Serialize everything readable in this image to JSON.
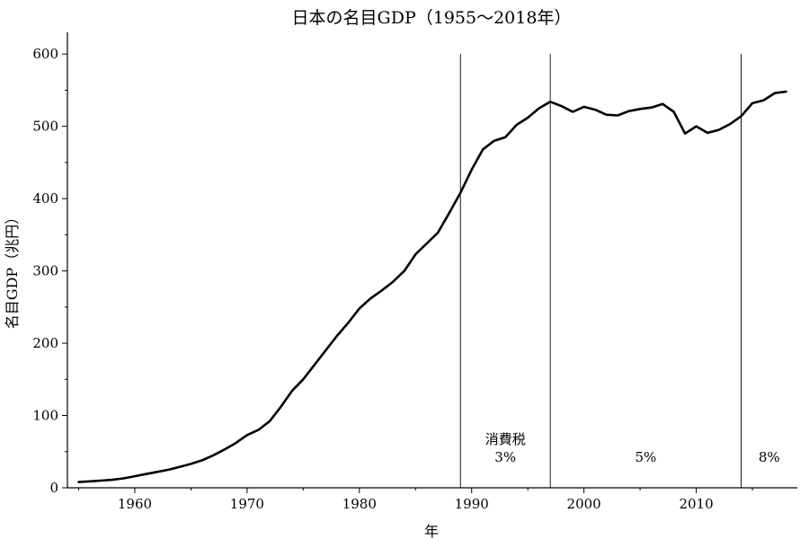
{
  "chart_data": {
    "type": "line",
    "title": "日本の名目GDP（1955〜2018年）",
    "xlabel": "年",
    "ylabel": "名目GDP（兆円）",
    "xlim": [
      1954,
      2019
    ],
    "ylim": [
      0,
      630
    ],
    "x_ticks": [
      1960,
      1970,
      1980,
      1990,
      2000,
      2010
    ],
    "y_ticks": [
      0,
      100,
      200,
      300,
      400,
      500,
      600
    ],
    "grid": false,
    "legend": "none",
    "line_color": "#000000",
    "series": [
      {
        "x": [
          1955,
          1956,
          1957,
          1958,
          1959,
          1960,
          1961,
          1962,
          1963,
          1964,
          1965,
          1966,
          1967,
          1968,
          1969,
          1970,
          1971,
          1972,
          1973,
          1974,
          1975,
          1976,
          1977,
          1978,
          1979,
          1980,
          1981,
          1982,
          1983,
          1984,
          1985,
          1986,
          1987,
          1988,
          1989,
          1990,
          1991,
          1992,
          1993,
          1994,
          1995,
          1996,
          1997,
          1998,
          1999,
          2000,
          2001,
          2002,
          2003,
          2004,
          2005,
          2006,
          2007,
          2008,
          2009,
          2010,
          2011,
          2012,
          2013,
          2014,
          2015,
          2016,
          2017,
          2018
        ],
        "y": [
          8,
          9,
          10,
          11,
          13,
          16,
          19,
          22,
          25,
          29,
          33,
          38,
          45,
          53,
          62,
          73,
          80,
          92,
          112,
          134,
          150,
          170,
          190,
          210,
          228,
          248,
          262,
          273,
          285,
          300,
          323,
          338,
          353,
          380,
          408,
          440,
          468,
          480,
          485,
          502,
          512,
          525,
          534,
          528,
          520,
          527,
          523,
          516,
          515,
          521,
          524,
          526,
          531,
          520,
          490,
          500,
          491,
          495,
          503,
          514,
          532,
          536,
          546,
          548
        ]
      }
    ],
    "reference_lines": [
      {
        "x": 1989,
        "label_lines": [
          "消費税",
          "3%"
        ]
      },
      {
        "x": 1997,
        "label_lines": [
          "5%"
        ]
      },
      {
        "x": 2014,
        "label_lines": [
          "8%"
        ]
      }
    ]
  }
}
